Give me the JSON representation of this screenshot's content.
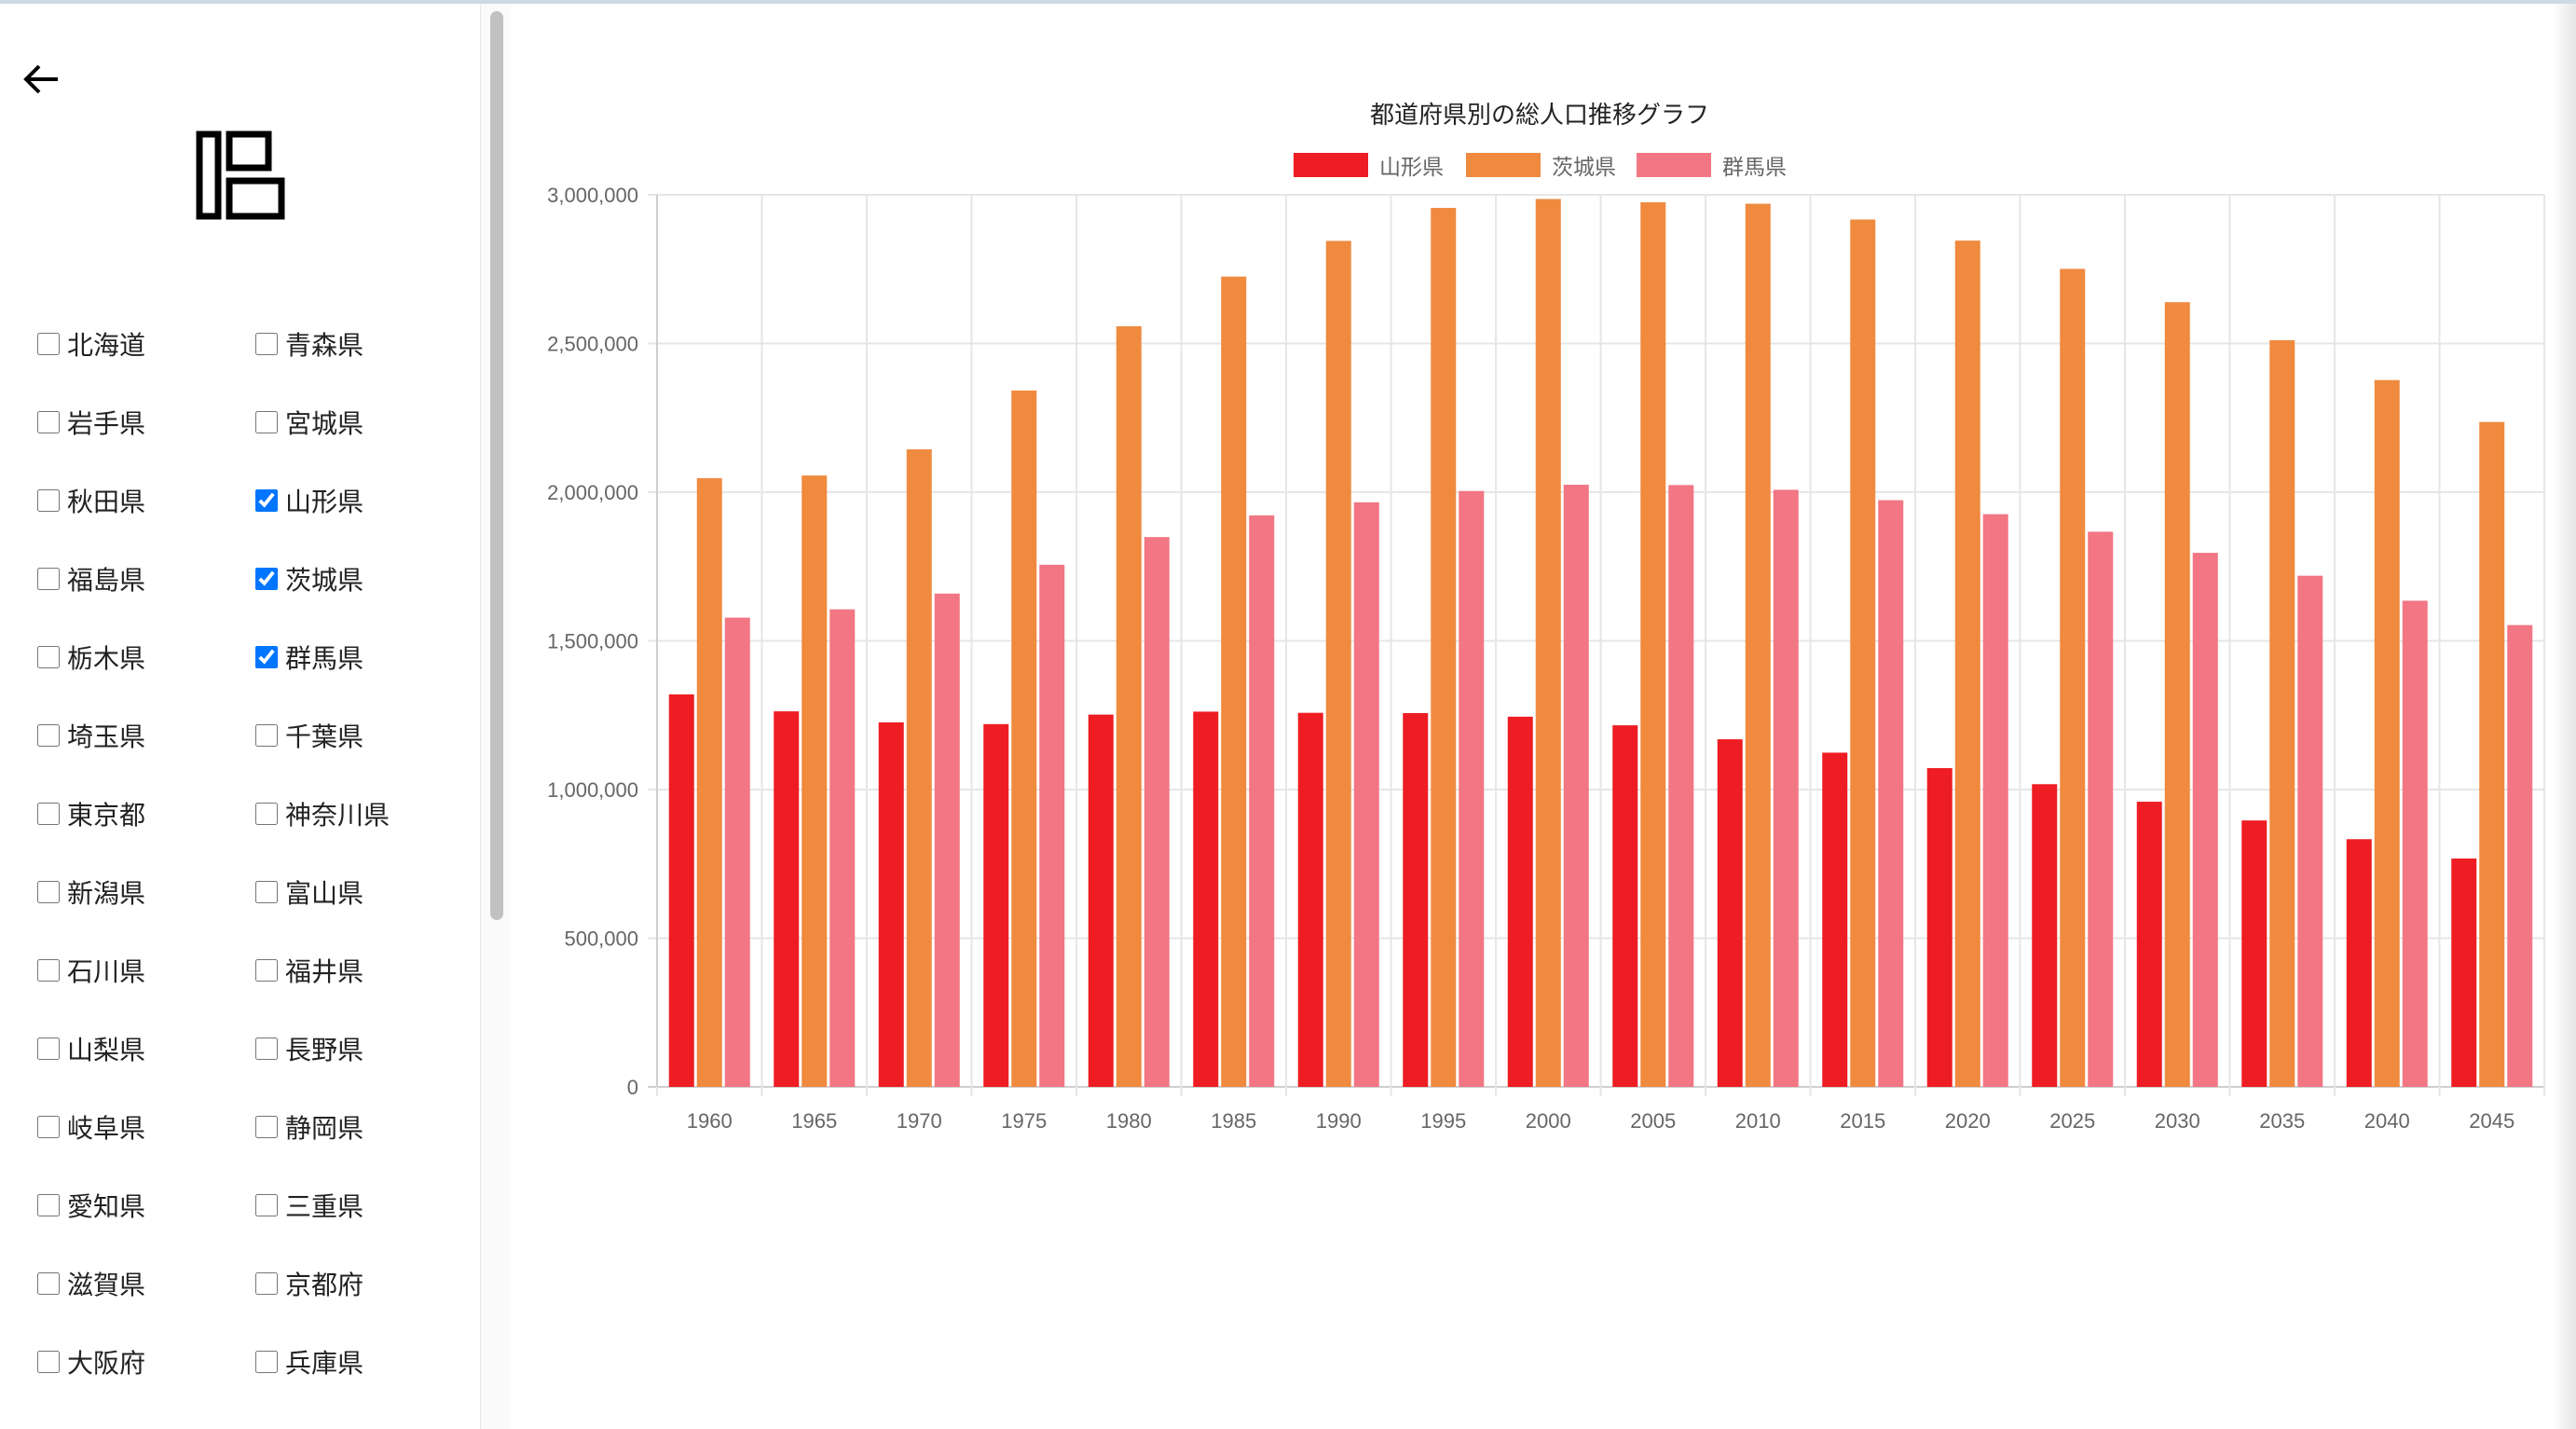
{
  "sidebar": {
    "prefectures": [
      {
        "name": "北海道",
        "checked": false
      },
      {
        "name": "青森県",
        "checked": false
      },
      {
        "name": "岩手県",
        "checked": false
      },
      {
        "name": "宮城県",
        "checked": false
      },
      {
        "name": "秋田県",
        "checked": false
      },
      {
        "name": "山形県",
        "checked": true
      },
      {
        "name": "福島県",
        "checked": false
      },
      {
        "name": "茨城県",
        "checked": true
      },
      {
        "name": "栃木県",
        "checked": false
      },
      {
        "name": "群馬県",
        "checked": true
      },
      {
        "name": "埼玉県",
        "checked": false
      },
      {
        "name": "千葉県",
        "checked": false
      },
      {
        "name": "東京都",
        "checked": false
      },
      {
        "name": "神奈川県",
        "checked": false
      },
      {
        "name": "新潟県",
        "checked": false
      },
      {
        "name": "富山県",
        "checked": false
      },
      {
        "name": "石川県",
        "checked": false
      },
      {
        "name": "福井県",
        "checked": false
      },
      {
        "name": "山梨県",
        "checked": false
      },
      {
        "name": "長野県",
        "checked": false
      },
      {
        "name": "岐阜県",
        "checked": false
      },
      {
        "name": "静岡県",
        "checked": false
      },
      {
        "name": "愛知県",
        "checked": false
      },
      {
        "name": "三重県",
        "checked": false
      },
      {
        "name": "滋賀県",
        "checked": false
      },
      {
        "name": "京都府",
        "checked": false
      },
      {
        "name": "大阪府",
        "checked": false
      },
      {
        "name": "兵庫県",
        "checked": false
      }
    ]
  },
  "colors": {
    "yamagata": "#ee1d23",
    "ibaraki": "#ef8a3f",
    "gunma": "#f27683",
    "grid": "#e5e5e5",
    "text": "#666666",
    "title": "#222222"
  },
  "chart_data": {
    "type": "bar",
    "title": "都道府県別の総人口推移グラフ",
    "xlabel": "",
    "ylabel": "",
    "ylim": [
      0,
      3000000
    ],
    "yticks": [
      0,
      500000,
      1000000,
      1500000,
      2000000,
      2500000,
      3000000
    ],
    "ytick_labels": [
      "0",
      "500,000",
      "1,000,000",
      "1,500,000",
      "2,000,000",
      "2,500,000",
      "3,000,000"
    ],
    "legend_position": "top",
    "grid": true,
    "categories": [
      "1960",
      "1965",
      "1970",
      "1975",
      "1980",
      "1985",
      "1990",
      "1995",
      "2000",
      "2005",
      "2010",
      "2015",
      "2020",
      "2025",
      "2030",
      "2035",
      "2040",
      "2045"
    ],
    "series": [
      {
        "name": "山形県",
        "color": "#ee1d23",
        "values": [
          1320000,
          1263000,
          1226000,
          1220000,
          1252000,
          1262000,
          1258000,
          1257000,
          1245000,
          1216000,
          1169000,
          1124000,
          1072000,
          1018000,
          959000,
          896000,
          833000,
          768000
        ]
      },
      {
        "name": "茨城県",
        "color": "#ef8a3f",
        "values": [
          2047000,
          2056000,
          2144000,
          2342000,
          2558000,
          2725000,
          2845000,
          2956000,
          2986000,
          2975000,
          2970000,
          2917000,
          2846000,
          2751000,
          2639000,
          2511000,
          2377000,
          2236000
        ]
      },
      {
        "name": "群馬県",
        "color": "#f27683",
        "values": [
          1578000,
          1606000,
          1659000,
          1756000,
          1849000,
          1922000,
          1966000,
          2004000,
          2025000,
          2024000,
          2008000,
          1973000,
          1926000,
          1867000,
          1796000,
          1719000,
          1635000,
          1553000
        ]
      }
    ]
  }
}
